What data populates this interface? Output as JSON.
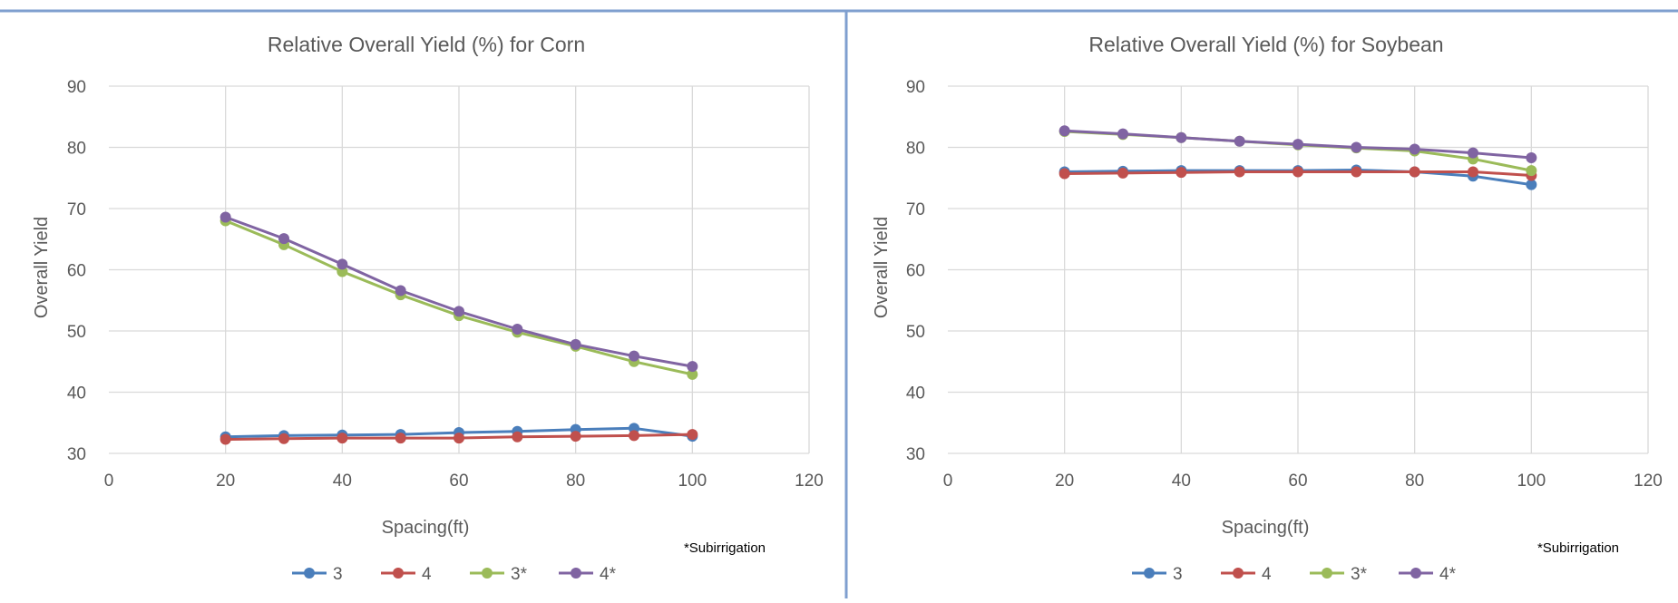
{
  "colors": {
    "series": [
      "#4a7ebb",
      "#c0504d",
      "#9bbb59",
      "#8064a2"
    ],
    "grid": "#d9d9d9",
    "border": "#7f9fcf",
    "text": "#595959"
  },
  "chart_data": [
    {
      "type": "line",
      "title": "Relative Overall Yield (%) for Corn",
      "xlabel": "Spacing(ft)",
      "ylabel": "Overall Yield",
      "xlim": [
        0,
        120
      ],
      "ylim": [
        30,
        90
      ],
      "x_ticks": [
        "0",
        "20",
        "40",
        "60",
        "80",
        "100",
        "120"
      ],
      "y_ticks": [
        "30",
        "40",
        "50",
        "60",
        "70",
        "80",
        "90"
      ],
      "grid": true,
      "legend": "bottom",
      "note": "*Subirrigation",
      "x": [
        20,
        30,
        40,
        50,
        60,
        70,
        80,
        90,
        100
      ],
      "series": [
        {
          "name": "3",
          "values": [
            32.7,
            32.9,
            33.0,
            33.1,
            33.4,
            33.6,
            33.9,
            34.1,
            32.8
          ]
        },
        {
          "name": "4",
          "values": [
            32.3,
            32.4,
            32.5,
            32.5,
            32.5,
            32.7,
            32.8,
            32.9,
            33.1
          ]
        },
        {
          "name": "3*",
          "values": [
            68.0,
            64.1,
            59.7,
            55.9,
            52.5,
            49.8,
            47.5,
            45.0,
            42.9
          ]
        },
        {
          "name": "4*",
          "values": [
            68.6,
            65.1,
            60.9,
            56.6,
            53.2,
            50.3,
            47.8,
            45.9,
            44.2
          ]
        }
      ]
    },
    {
      "type": "line",
      "title": "Relative Overall Yield (%) for Soybean",
      "xlabel": "Spacing(ft)",
      "ylabel": "Overall Yield",
      "xlim": [
        0,
        120
      ],
      "ylim": [
        30,
        90
      ],
      "x_ticks": [
        "0",
        "20",
        "40",
        "60",
        "80",
        "100",
        "120"
      ],
      "y_ticks": [
        "30",
        "40",
        "50",
        "60",
        "70",
        "80",
        "90"
      ],
      "grid": true,
      "legend": "bottom",
      "note": "*Subirrigation",
      "x": [
        20,
        30,
        40,
        50,
        60,
        70,
        80,
        90,
        100
      ],
      "series": [
        {
          "name": "3",
          "values": [
            76.0,
            76.1,
            76.2,
            76.2,
            76.2,
            76.3,
            76.0,
            75.3,
            73.9
          ]
        },
        {
          "name": "4",
          "values": [
            75.7,
            75.8,
            75.9,
            76.0,
            76.0,
            76.0,
            76.0,
            76.0,
            75.4
          ]
        },
        {
          "name": "3*",
          "values": [
            82.6,
            82.1,
            81.6,
            81.0,
            80.4,
            79.9,
            79.4,
            78.1,
            76.2
          ]
        },
        {
          "name": "4*",
          "values": [
            82.7,
            82.2,
            81.6,
            81.0,
            80.5,
            80.0,
            79.7,
            79.1,
            78.3
          ]
        }
      ]
    }
  ]
}
